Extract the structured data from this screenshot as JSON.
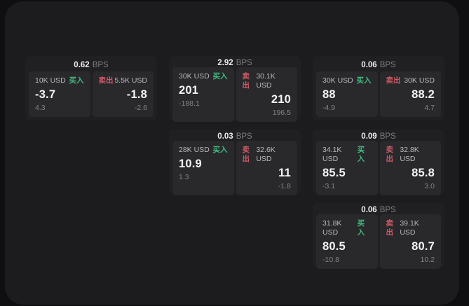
{
  "colors": {
    "buy": "#42ba7e",
    "sell": "#cd5a66"
  },
  "labels": {
    "bps": "BPS",
    "buy": "买入",
    "sell": "卖出"
  },
  "cards": [
    {
      "bps": "0.62",
      "col": 1,
      "row": 1,
      "buy": {
        "amount": "10K USD",
        "price": "-3.7",
        "delta": "4.3"
      },
      "sell": {
        "amount": "5.5K USD",
        "price": "-1.8",
        "delta": "-2.6"
      }
    },
    {
      "bps": "2.92",
      "col": 2,
      "row": 1,
      "buy": {
        "amount": "30K USD",
        "price": "201",
        "delta": "-188.1"
      },
      "sell": {
        "amount": "30.1K USD",
        "price": "210",
        "delta": "196.5"
      }
    },
    {
      "bps": "0.06",
      "col": 3,
      "row": 1,
      "buy": {
        "amount": "30K USD",
        "price": "88",
        "delta": "-4.9"
      },
      "sell": {
        "amount": "30K USD",
        "price": "88.2",
        "delta": "4.7"
      }
    },
    {
      "bps": "0.03",
      "col": 2,
      "row": 2,
      "buy": {
        "amount": "28K USD",
        "price": "10.9",
        "delta": "1.3"
      },
      "sell": {
        "amount": "32.6K USD",
        "price": "11",
        "delta": "-1.8"
      }
    },
    {
      "bps": "0.09",
      "col": 3,
      "row": 2,
      "buy": {
        "amount": "34.1K USD",
        "price": "85.5",
        "delta": "-3.1"
      },
      "sell": {
        "amount": "32.8K USD",
        "price": "85.8",
        "delta": "3.0"
      }
    },
    {
      "bps": "0.06",
      "col": 3,
      "row": 3,
      "buy": {
        "amount": "31.8K USD",
        "price": "80.5",
        "delta": "-10.8"
      },
      "sell": {
        "amount": "39.1K USD",
        "price": "80.7",
        "delta": "10.2"
      }
    }
  ]
}
